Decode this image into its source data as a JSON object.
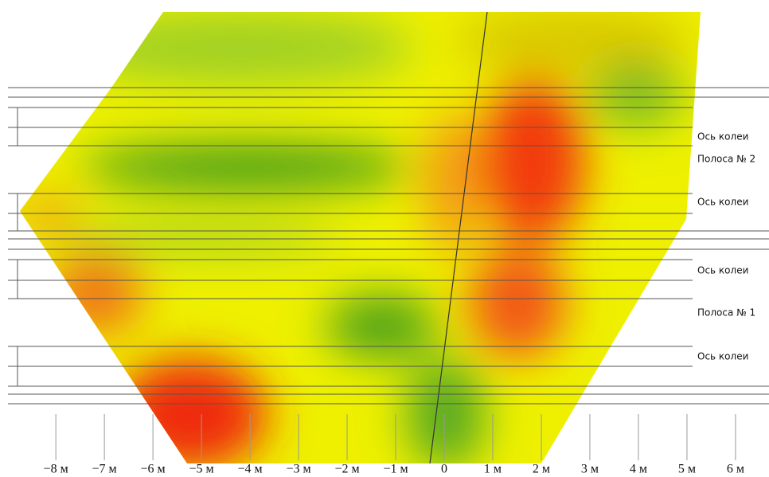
{
  "chart_data": {
    "type": "heatmap",
    "xlim": [
      -9.15,
      6.69
    ],
    "xticks": [
      {
        "value": -8,
        "label": "−8 м"
      },
      {
        "value": -7,
        "label": "−7 м"
      },
      {
        "value": -6,
        "label": "−6 м"
      },
      {
        "value": -5,
        "label": "−5 м"
      },
      {
        "value": -4,
        "label": "−4 м"
      },
      {
        "value": -3,
        "label": "−3 м"
      },
      {
        "value": -2,
        "label": "−2 м"
      },
      {
        "value": -1,
        "label": "−1 м"
      },
      {
        "value": 0,
        "label": "0"
      },
      {
        "value": 1,
        "label": "1 м"
      },
      {
        "value": 2,
        "label": "2 м"
      },
      {
        "value": 3,
        "label": "3 м"
      },
      {
        "value": 4,
        "label": "4 м"
      },
      {
        "value": 5,
        "label": "5 м"
      },
      {
        "value": 6,
        "label": "6 м"
      }
    ],
    "annotations": [
      "Ось колеи",
      "Полоса № 2",
      "Ось колеи",
      "Ось колеи",
      "Полоса № 1",
      "Ось колеи"
    ]
  }
}
